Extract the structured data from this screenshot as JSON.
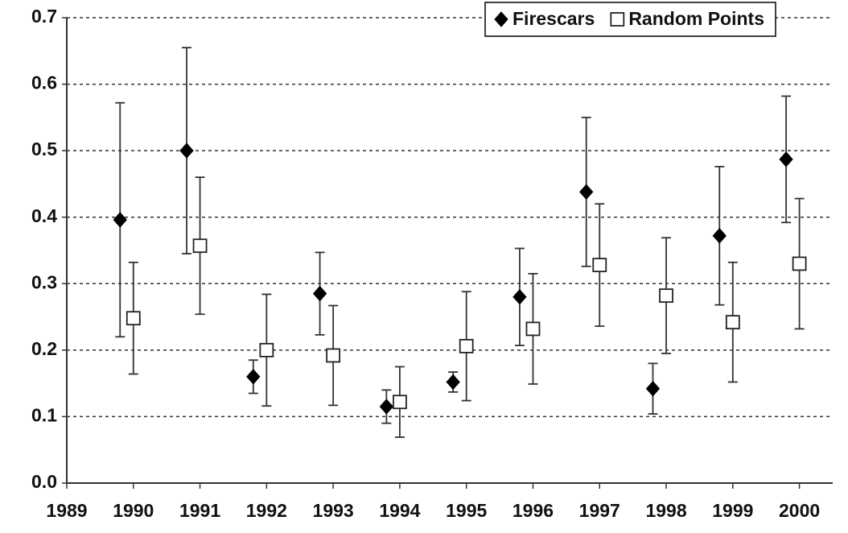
{
  "chart_data": {
    "type": "errorbar-scatter",
    "xlim": [
      1989,
      2000.5
    ],
    "xticks": [
      1989,
      1990,
      1991,
      1992,
      1993,
      1994,
      1995,
      1996,
      1997,
      1998,
      1999,
      2000
    ],
    "ylim": [
      0,
      0.7
    ],
    "yticks": [
      {
        "value": 0,
        "label": "0.0"
      },
      0.1,
      0.2,
      0.3,
      0.4,
      0.5,
      0.6,
      0.7
    ],
    "grid": true,
    "legend": "top-right",
    "series": [
      {
        "name": "Firescars",
        "color": "#000000",
        "marker": "diamond",
        "x": [
          1989.8,
          1990.8,
          1991.8,
          1992.8,
          1993.8,
          1994.8,
          1995.8,
          1996.8,
          1997.8,
          1998.8,
          1999.8
        ],
        "y": [
          0.396,
          0.5,
          0.16,
          0.285,
          0.115,
          0.152,
          0.28,
          0.438,
          0.142,
          0.372,
          0.487
        ],
        "error": [
          0.176,
          0.155,
          0.025,
          0.062,
          0.025,
          0.015,
          0.073,
          0.112,
          0.038,
          0.104,
          0.095
        ]
      },
      {
        "name": "Random Points",
        "color": "#ffffff",
        "marker": "square",
        "x": [
          1990,
          1991,
          1992,
          1993,
          1994,
          1995,
          1996,
          1997,
          1998,
          1999,
          2000
        ],
        "y": [
          0.248,
          0.357,
          0.2,
          0.192,
          0.122,
          0.206,
          0.232,
          0.328,
          0.282,
          0.242,
          0.33
        ],
        "error": [
          0.084,
          0.103,
          0.084,
          0.075,
          0.053,
          0.082,
          0.083,
          0.092,
          0.087,
          0.09,
          0.098
        ]
      }
    ]
  }
}
